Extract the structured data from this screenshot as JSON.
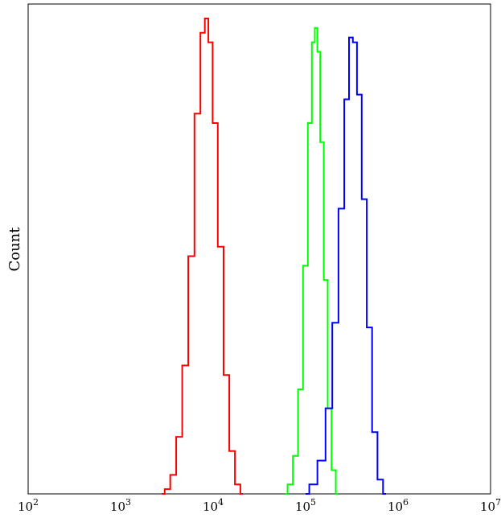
{
  "chart_data": {
    "type": "line",
    "title": "",
    "xlabel": "",
    "ylabel": "Count",
    "x_scale": "log",
    "xlim": [
      100,
      10000000
    ],
    "ylim": [
      0,
      1.0
    ],
    "grid": false,
    "x_ticks": [
      {
        "base": "10",
        "exp": "2",
        "value": 100
      },
      {
        "base": "10",
        "exp": "3",
        "value": 1000
      },
      {
        "base": "10",
        "exp": "4",
        "value": 10000
      },
      {
        "base": "10",
        "exp": "5",
        "value": 100000
      },
      {
        "base": "10",
        "exp": "6",
        "value": 1000000
      },
      {
        "base": "10",
        "exp": "7",
        "value": 10000000
      }
    ],
    "series": [
      {
        "color": "#ff0000",
        "peak_x": 8500,
        "x": [
          2800,
          3200,
          3700,
          4300,
          5000,
          5800,
          6800,
          7800,
          8500,
          9300,
          10500,
          12000,
          14000,
          16000,
          18500,
          21000
        ],
        "y": [
          0.0,
          0.01,
          0.04,
          0.12,
          0.27,
          0.5,
          0.8,
          0.97,
          1.0,
          0.95,
          0.78,
          0.52,
          0.25,
          0.09,
          0.02,
          0.0
        ]
      },
      {
        "color": "#00ff00",
        "peak_x": 130000,
        "x": [
          60000,
          68000,
          78000,
          88000,
          100000,
          112000,
          122000,
          130000,
          138000,
          150000,
          165000,
          182000,
          200000,
          225000
        ],
        "y": [
          0.0,
          0.02,
          0.08,
          0.22,
          0.48,
          0.78,
          0.95,
          0.98,
          0.93,
          0.74,
          0.45,
          0.18,
          0.05,
          0.0
        ]
      },
      {
        "color": "#0000ff",
        "peak_x": 330000,
        "x": [
          100000,
          120000,
          150000,
          180000,
          210000,
          245000,
          280000,
          310000,
          340000,
          380000,
          430000,
          490000,
          560000,
          640000,
          740000
        ],
        "y": [
          0.0,
          0.02,
          0.07,
          0.18,
          0.36,
          0.6,
          0.83,
          0.96,
          0.95,
          0.84,
          0.62,
          0.35,
          0.13,
          0.03,
          0.0
        ]
      }
    ]
  }
}
